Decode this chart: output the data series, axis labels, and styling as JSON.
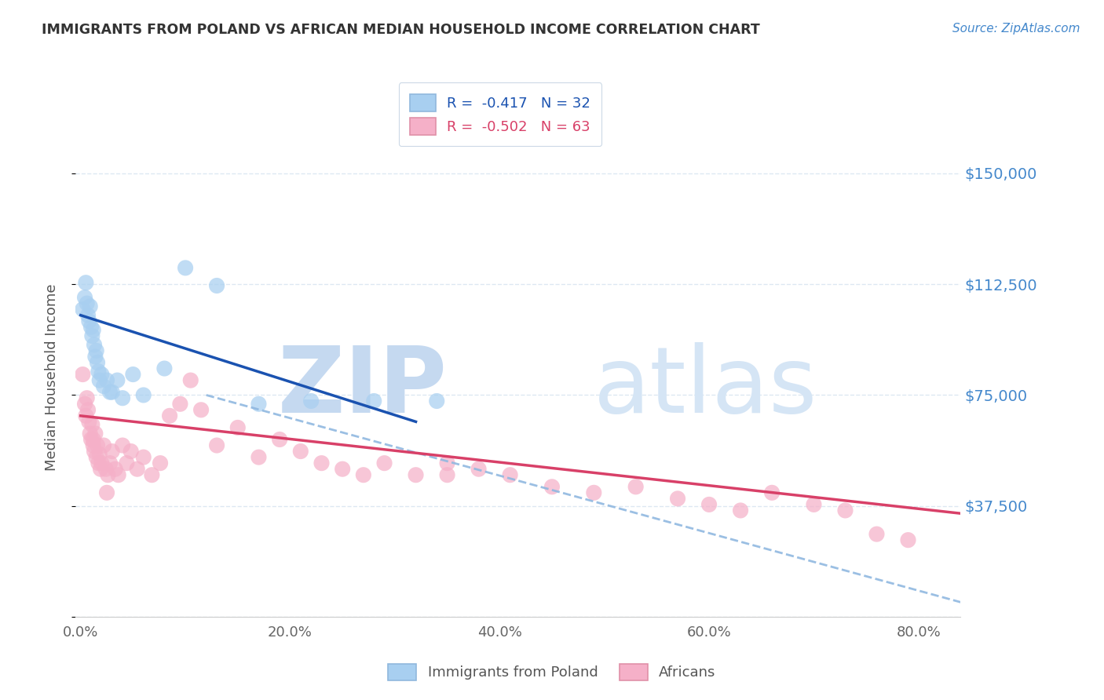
{
  "title": "IMMIGRANTS FROM POLAND VS AFRICAN MEDIAN HOUSEHOLD INCOME CORRELATION CHART",
  "source": "Source: ZipAtlas.com",
  "ylabel": "Median Household Income",
  "xlabel_ticks": [
    "0.0%",
    "20.0%",
    "40.0%",
    "60.0%",
    "80.0%"
  ],
  "xlabel_tick_vals": [
    0.0,
    0.2,
    0.4,
    0.6,
    0.8
  ],
  "ytick_vals": [
    0,
    37500,
    75000,
    112500,
    150000
  ],
  "ytick_labels": [
    "",
    "$37,500",
    "$75,000",
    "$112,500",
    "$150,000"
  ],
  "ylim": [
    0,
    162000
  ],
  "xlim": [
    -0.005,
    0.84
  ],
  "legend1_r": "-0.417",
  "legend1_n": "32",
  "legend2_r": "-0.502",
  "legend2_n": "63",
  "legend1_label": "Immigrants from Poland",
  "legend2_label": "Africans",
  "blue_scatter_color": "#a8cff0",
  "pink_scatter_color": "#f5b0c8",
  "line_blue": "#1a52b0",
  "line_pink": "#d84068",
  "dashed_color": "#90b8e0",
  "title_color": "#333333",
  "ytick_color": "#4488cc",
  "watermark_zip_color": "#c5d9f0",
  "watermark_atlas_color": "#d5e5f5",
  "background_color": "#ffffff",
  "grid_color": "#dde8f2",
  "poland_x": [
    0.002,
    0.004,
    0.005,
    0.006,
    0.007,
    0.008,
    0.009,
    0.01,
    0.011,
    0.012,
    0.013,
    0.014,
    0.015,
    0.016,
    0.017,
    0.018,
    0.02,
    0.022,
    0.025,
    0.028,
    0.03,
    0.035,
    0.04,
    0.05,
    0.06,
    0.08,
    0.1,
    0.13,
    0.17,
    0.22,
    0.28,
    0.34
  ],
  "poland_y": [
    104000,
    108000,
    113000,
    106000,
    102000,
    100000,
    105000,
    98000,
    95000,
    97000,
    92000,
    88000,
    90000,
    86000,
    83000,
    80000,
    82000,
    78000,
    80000,
    76000,
    76000,
    80000,
    74000,
    82000,
    75000,
    84000,
    118000,
    112000,
    72000,
    73000,
    73000,
    73000
  ],
  "african_x": [
    0.002,
    0.004,
    0.005,
    0.006,
    0.007,
    0.008,
    0.009,
    0.01,
    0.011,
    0.012,
    0.013,
    0.014,
    0.015,
    0.016,
    0.017,
    0.018,
    0.019,
    0.02,
    0.022,
    0.024,
    0.026,
    0.028,
    0.03,
    0.033,
    0.036,
    0.04,
    0.044,
    0.048,
    0.054,
    0.06,
    0.068,
    0.076,
    0.085,
    0.095,
    0.105,
    0.115,
    0.13,
    0.15,
    0.17,
    0.19,
    0.21,
    0.23,
    0.25,
    0.27,
    0.29,
    0.32,
    0.35,
    0.38,
    0.41,
    0.45,
    0.49,
    0.53,
    0.57,
    0.6,
    0.63,
    0.66,
    0.7,
    0.73,
    0.76,
    0.79,
    0.012,
    0.025,
    0.35
  ],
  "african_y": [
    82000,
    72000,
    68000,
    74000,
    70000,
    66000,
    62000,
    60000,
    65000,
    58000,
    56000,
    62000,
    54000,
    58000,
    52000,
    55000,
    50000,
    52000,
    58000,
    50000,
    48000,
    52000,
    56000,
    50000,
    48000,
    58000,
    52000,
    56000,
    50000,
    54000,
    48000,
    52000,
    68000,
    72000,
    80000,
    70000,
    58000,
    64000,
    54000,
    60000,
    56000,
    52000,
    50000,
    48000,
    52000,
    48000,
    52000,
    50000,
    48000,
    44000,
    42000,
    44000,
    40000,
    38000,
    36000,
    42000,
    38000,
    36000,
    28000,
    26000,
    60000,
    42000,
    48000
  ],
  "blue_line_x0": 0.0,
  "blue_line_y0": 102000,
  "blue_line_x1": 0.32,
  "blue_line_y1": 66000,
  "pink_line_x0": 0.0,
  "pink_line_y0": 68000,
  "pink_line_x1": 0.84,
  "pink_line_y1": 35000,
  "dash_line_x0": 0.12,
  "dash_line_y0": 75000,
  "dash_line_x1": 0.84,
  "dash_line_y1": 5000
}
